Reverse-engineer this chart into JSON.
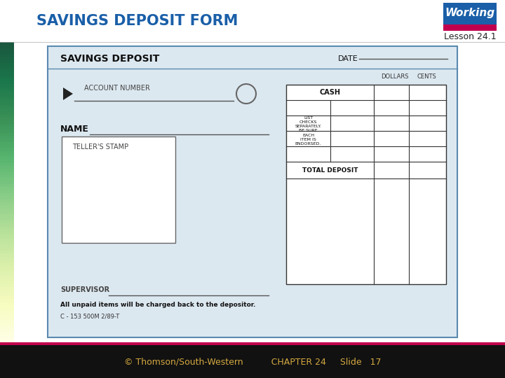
{
  "title": "SAVINGS DEPOSIT FORM",
  "title_color": "#1a5fa8",
  "lesson_text": "Lesson 24.1",
  "working_bg": "#1a5fa8",
  "working_text": "Working",
  "working_bar_color": "#c0004e",
  "footer_bg": "#111111",
  "footer_text": "© Thomson/South-Western          CHAPTER 24     Slide   17",
  "footer_color": "#d4a840",
  "footer_bar_color": "#c0004e",
  "bg_color": "#ffffff",
  "form_bg": "#dce8f0",
  "form_border": "#5a8ab0",
  "form_title": "SAVINGS DEPOSIT",
  "date_label": "DATE",
  "account_label": "ACCOUNT NUMBER",
  "name_label": "NAME",
  "teller_label": "TELLER'S STAMP",
  "supervisor_label": "SUPERVISOR",
  "bottom_text1": "All unpaid items will be charged back to the depositor.",
  "bottom_text2": "C - 153 500M 2/89-T",
  "dollars_label": "DOLLARS",
  "cents_label": "CENTS",
  "cash_label": "CASH",
  "checks_label": "LIST\nCHECKS\nSEPARATELY.\nBE SURE\nEACH\nITEM IS\nENDORSED.",
  "total_label": "TOTAL DEPOSIT"
}
